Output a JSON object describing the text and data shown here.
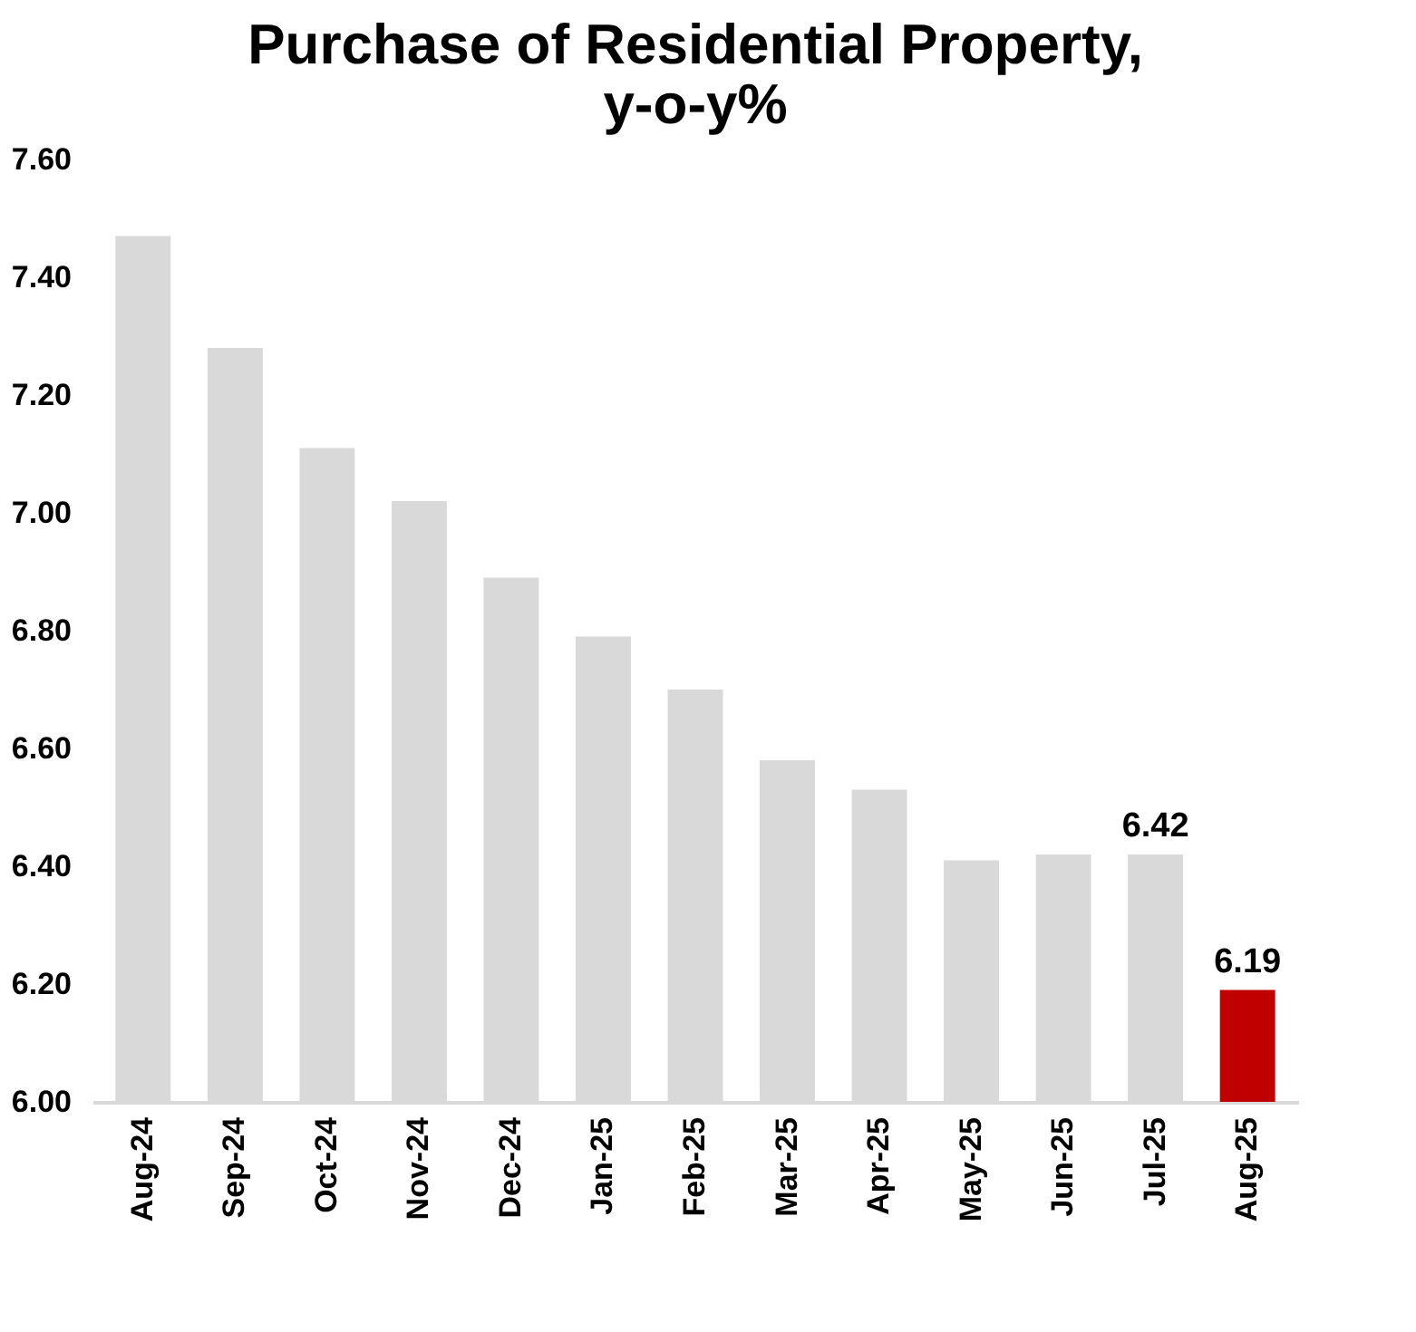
{
  "chart_data": {
    "type": "bar",
    "title": "Purchase of Residential Property,\ny-o-y%",
    "categories": [
      "Aug-24",
      "Sep-24",
      "Oct-24",
      "Nov-24",
      "Dec-24",
      "Jan-25",
      "Feb-25",
      "Mar-25",
      "Apr-25",
      "May-25",
      "Jun-25",
      "Jul-25",
      "Aug-25"
    ],
    "values": [
      7.47,
      7.28,
      7.11,
      7.02,
      6.89,
      6.79,
      6.7,
      6.58,
      6.53,
      6.41,
      6.42,
      6.42,
      6.19
    ],
    "colors": [
      "#d9d9d9",
      "#d9d9d9",
      "#d9d9d9",
      "#d9d9d9",
      "#d9d9d9",
      "#d9d9d9",
      "#d9d9d9",
      "#d9d9d9",
      "#d9d9d9",
      "#d9d9d9",
      "#d9d9d9",
      "#d9d9d9",
      "#c00000"
    ],
    "value_labels": [
      null,
      null,
      null,
      null,
      null,
      null,
      null,
      null,
      null,
      null,
      null,
      "6.42",
      "6.19"
    ],
    "ylim": [
      6.0,
      7.6
    ],
    "yticks": [
      {
        "value": 6.0,
        "label": "6.00"
      },
      {
        "value": 6.2,
        "label": "6.20"
      },
      {
        "value": 6.4,
        "label": "6.40"
      },
      {
        "value": 6.6,
        "label": "6.60"
      },
      {
        "value": 6.8,
        "label": "6.80"
      },
      {
        "value": 7.0,
        "label": "7.00"
      },
      {
        "value": 7.2,
        "label": "7.20"
      },
      {
        "value": 7.4,
        "label": "7.40"
      },
      {
        "value": 7.6,
        "label": "7.60"
      }
    ],
    "grid": false
  }
}
